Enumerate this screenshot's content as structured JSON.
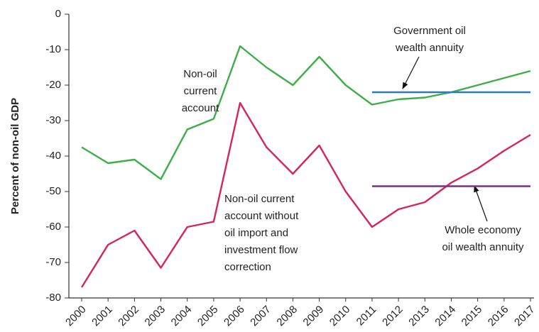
{
  "chart_data": {
    "type": "line",
    "y_label": "Percent of non-oil GDP",
    "categories": [
      "2000",
      "2001",
      "2002",
      "2003",
      "2004",
      "2005",
      "2006",
      "2007",
      "2008",
      "2009",
      "2010",
      "2011",
      "2012",
      "2013",
      "2014",
      "2015",
      "2016",
      "2017"
    ],
    "series": [
      {
        "name": "Non-oil current account",
        "color": "#3fae49",
        "values": [
          -37.5,
          -42,
          -41,
          -46.5,
          -32.5,
          -29.5,
          -9,
          -15,
          -20,
          -12,
          -20,
          -25.5,
          -24,
          -23.5,
          -22,
          -20,
          -18,
          -16
        ]
      },
      {
        "name": "Non-oil current account without oil import and investment flow correction",
        "color": "#d6245e",
        "values": [
          -77,
          -65,
          -61,
          -71.5,
          -60,
          -58.5,
          -25,
          -37.5,
          -45,
          -37,
          -50,
          -60,
          -55,
          -53,
          -47.5,
          -43.5,
          -38.5,
          -34
        ]
      },
      {
        "name": "Government oil wealth annuity",
        "color": "#2b7bbf",
        "values": [
          null,
          null,
          null,
          null,
          null,
          null,
          null,
          null,
          null,
          null,
          null,
          -22,
          -22,
          -22,
          -22,
          -22,
          -22,
          -22
        ]
      },
      {
        "name": "Whole economy oil wealth annuity",
        "color": "#7b2d8e",
        "values": [
          null,
          null,
          null,
          null,
          null,
          null,
          null,
          null,
          null,
          null,
          null,
          -48.5,
          -48.5,
          -48.5,
          -48.5,
          -48.5,
          -48.5,
          -48.5
        ]
      }
    ],
    "annotations": [
      {
        "lines": [
          "Non-oil",
          "current",
          "account"
        ]
      },
      {
        "lines": [
          "Non-oil current",
          "account without",
          "oil import and",
          "investment flow",
          "correction"
        ]
      },
      {
        "lines": [
          "Government oil",
          "wealth annuity"
        ]
      },
      {
        "lines": [
          "Whole economy",
          "oil wealth annuity"
        ]
      }
    ],
    "ylim": [
      -80,
      0
    ],
    "yticks": [
      0,
      -10,
      -20,
      -30,
      -40,
      -50,
      -60,
      -70,
      -80
    ]
  }
}
